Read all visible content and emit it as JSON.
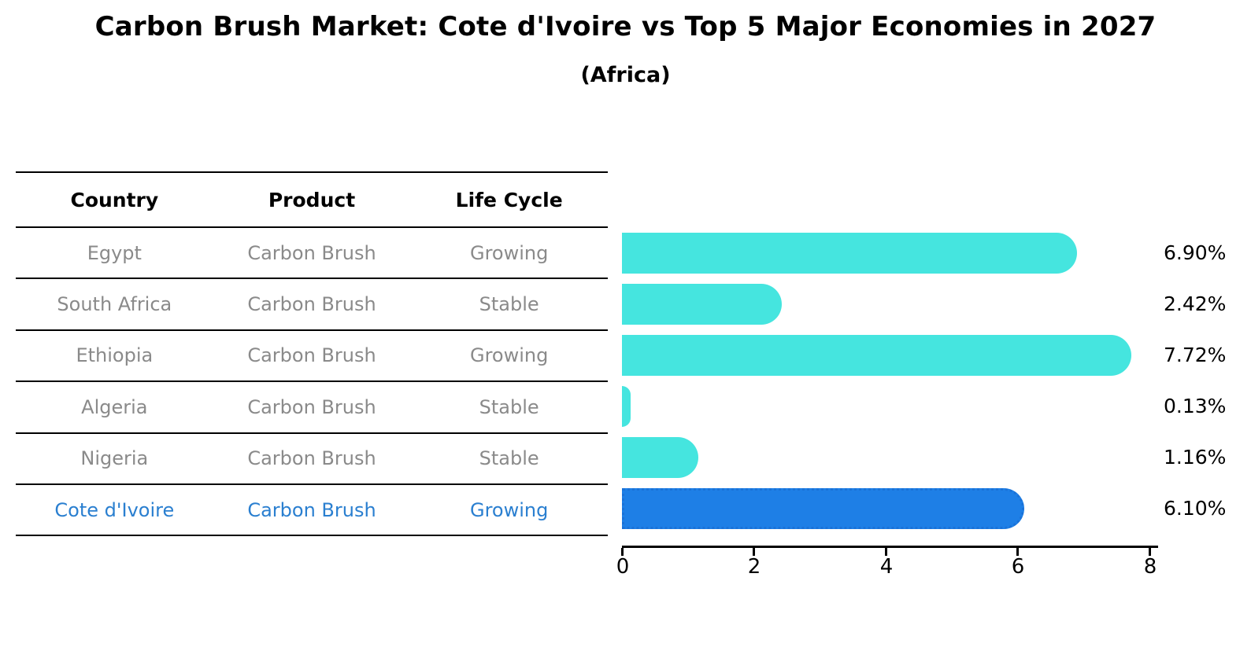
{
  "title": "Carbon Brush Market: Cote d'Ivoire vs Top 5 Major Economies in 2027",
  "subtitle": "(Africa)",
  "table": {
    "headers": {
      "country": "Country",
      "product": "Product",
      "life_cycle": "Life Cycle"
    },
    "rows": [
      {
        "country": "Egypt",
        "product": "Carbon Brush",
        "life_cycle": "Growing"
      },
      {
        "country": "South Africa",
        "product": "Carbon Brush",
        "life_cycle": "Stable"
      },
      {
        "country": "Ethiopia",
        "product": "Carbon Brush",
        "life_cycle": "Growing"
      },
      {
        "country": "Algeria",
        "product": "Carbon Brush",
        "life_cycle": "Stable"
      },
      {
        "country": "Nigeria",
        "product": "Carbon Brush",
        "life_cycle": "Stable"
      },
      {
        "country": "Cote d'Ivoire",
        "product": "Carbon Brush",
        "life_cycle": "Growing"
      }
    ]
  },
  "chart_data": {
    "type": "bar",
    "orientation": "horizontal",
    "title": "Carbon Brush Market: Cote d'Ivoire vs Top 5 Major Economies in 2027",
    "subtitle": "(Africa)",
    "categories": [
      "Egypt",
      "South Africa",
      "Ethiopia",
      "Algeria",
      "Nigeria",
      "Cote d'Ivoire"
    ],
    "values": [
      6.9,
      2.42,
      7.72,
      0.13,
      1.16,
      6.1
    ],
    "value_labels": [
      "6.90%",
      "2.42%",
      "7.72%",
      "0.13%",
      "1.16%",
      "6.10%"
    ],
    "highlight_index": 5,
    "highlight_category": "Cote d'Ivoire",
    "xlim": [
      0,
      8
    ],
    "xticks": [
      0,
      2,
      4,
      6,
      8
    ],
    "grid": false,
    "legend": false
  },
  "colors": {
    "bar_default": "#45E5DF",
    "bar_highlight": "#1E7FE6",
    "bar_highlight_edge": "#1A72D8",
    "highlight_text": "#2A7FD0",
    "table_text": "#8A8A8A",
    "axis": "#000000"
  }
}
